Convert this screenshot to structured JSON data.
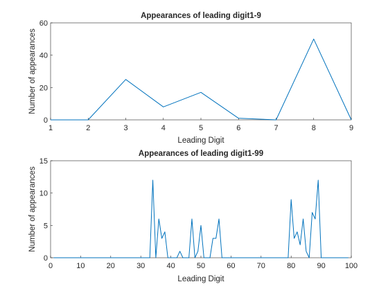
{
  "chart_data": [
    {
      "type": "line",
      "title": "Appearances of leading digit1-9",
      "xlabel": "Leading Digit",
      "ylabel": "Number of appearances",
      "xlim": [
        1,
        9
      ],
      "ylim": [
        0,
        60
      ],
      "xticks": [
        1,
        2,
        3,
        4,
        5,
        6,
        7,
        8,
        9
      ],
      "yticks": [
        0,
        20,
        40,
        60
      ],
      "grid": false,
      "legend": "none",
      "series": [
        {
          "color": "#0072BD",
          "x": [
            1,
            2,
            3,
            4,
            5,
            6,
            7,
            8,
            9
          ],
          "y": [
            0,
            0,
            25,
            8,
            17,
            1,
            0,
            50,
            0
          ]
        }
      ]
    },
    {
      "type": "line",
      "title": "Appearances of leading digit1-99",
      "xlabel": "Leading Digit",
      "ylabel": "Number of appearances",
      "xlim": [
        0,
        100
      ],
      "ylim": [
        0,
        15
      ],
      "xticks": [
        0,
        10,
        20,
        30,
        40,
        50,
        60,
        70,
        80,
        90,
        100
      ],
      "yticks": [
        0,
        5,
        10,
        15
      ],
      "grid": false,
      "legend": "none",
      "series": [
        {
          "color": "#0072BD",
          "x": [
            1,
            2,
            3,
            4,
            5,
            6,
            7,
            8,
            9,
            10,
            11,
            12,
            13,
            14,
            15,
            16,
            17,
            18,
            19,
            20,
            21,
            22,
            23,
            24,
            25,
            26,
            27,
            28,
            29,
            30,
            31,
            32,
            33,
            34,
            35,
            36,
            37,
            38,
            39,
            40,
            41,
            42,
            43,
            44,
            45,
            46,
            47,
            48,
            49,
            50,
            51,
            52,
            53,
            54,
            55,
            56,
            57,
            58,
            59,
            60,
            61,
            62,
            63,
            64,
            65,
            66,
            67,
            68,
            69,
            70,
            71,
            72,
            73,
            74,
            75,
            76,
            77,
            78,
            79,
            80,
            81,
            82,
            83,
            84,
            85,
            86,
            87,
            88,
            89,
            90,
            91,
            92,
            93,
            94,
            95,
            96,
            97,
            98,
            99
          ],
          "y": [
            0,
            0,
            0,
            0,
            0,
            0,
            0,
            0,
            0,
            0,
            0,
            0,
            0,
            0,
            0,
            0,
            0,
            0,
            0,
            0,
            0,
            0,
            0,
            0,
            0,
            0,
            0,
            0,
            0,
            0,
            0,
            0,
            0,
            12,
            0,
            6,
            3,
            4,
            0,
            0,
            0,
            0,
            1,
            0,
            0,
            0,
            6,
            0,
            1,
            5,
            0,
            0,
            0,
            3,
            3,
            6,
            0,
            0,
            0,
            0,
            0,
            0,
            0,
            0,
            0,
            0,
            0,
            0,
            0,
            0,
            0,
            0,
            0,
            0,
            0,
            0,
            0,
            0,
            0,
            9,
            3,
            4,
            2,
            6,
            1,
            0,
            7,
            6,
            12,
            0,
            0,
            0,
            0,
            0,
            0,
            0,
            0,
            0,
            0
          ]
        }
      ]
    }
  ]
}
